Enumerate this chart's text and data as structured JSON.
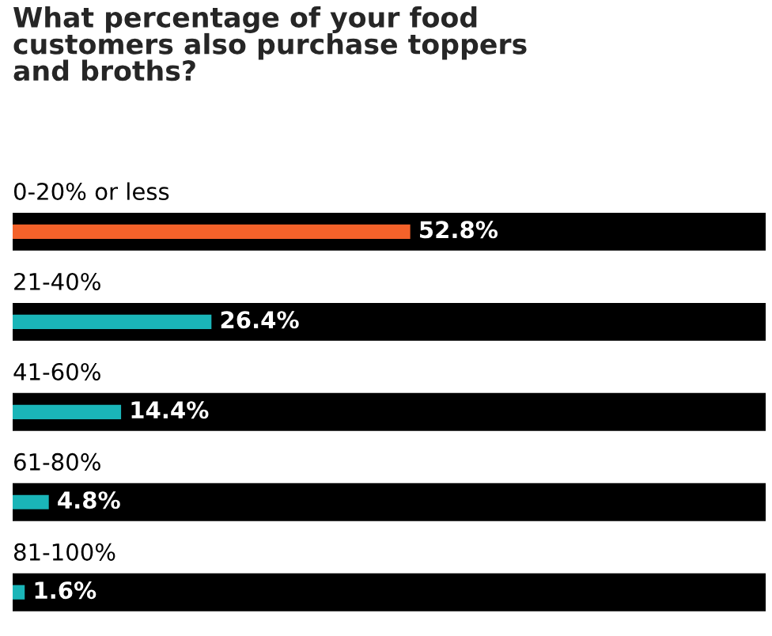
{
  "chart_data": {
    "type": "bar",
    "orientation": "horizontal",
    "title": "What percentage of your food\ncustomers also purchase toppers\nand broths?",
    "categories": [
      "0-20% or less",
      "21-40%",
      "41-60%",
      "61-80%",
      "81-100%"
    ],
    "series": [
      {
        "color": "#000000",
        "values": [
          100,
          100,
          100,
          100,
          100
        ]
      },
      {
        "colors": [
          "#f4622a",
          "#1ab5b8",
          "#1ab5b8",
          "#1ab5b8",
          "#1ab5b8"
        ],
        "values": [
          52.8,
          26.4,
          14.4,
          4.8,
          1.6
        ],
        "value_labels": [
          "52.8%",
          "26.4%",
          "14.4%",
          "4.8%",
          "1.6%"
        ]
      }
    ]
  }
}
